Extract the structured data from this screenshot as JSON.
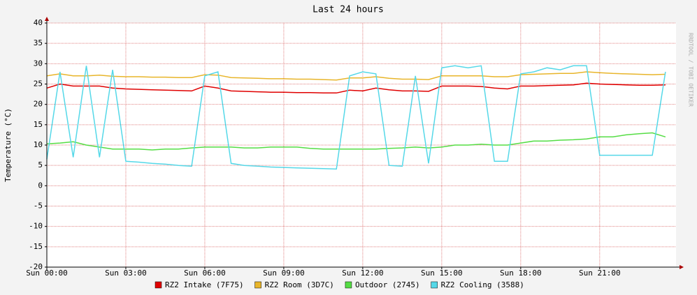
{
  "chart_data": {
    "type": "line",
    "title": "Last 24 hours",
    "y_label": "Temperature (°C)",
    "watermark": "RRDTOOL / TOBI OETIKER",
    "x": [
      0,
      0.5,
      1,
      1.5,
      2,
      2.5,
      3,
      3.5,
      4,
      4.5,
      5,
      5.5,
      6,
      6.5,
      7,
      7.5,
      8,
      8.5,
      9,
      9.5,
      10,
      10.5,
      11,
      11.5,
      12,
      12.5,
      13,
      13.5,
      14,
      14.5,
      15,
      15.5,
      16,
      16.5,
      17,
      17.5,
      18,
      18.5,
      19,
      19.5,
      20,
      20.5,
      21,
      21.5,
      22,
      22.5,
      23,
      23.5
    ],
    "xlim": [
      0,
      23.9
    ],
    "xticks": [
      {
        "value": 0,
        "label": "Sun 00:00"
      },
      {
        "value": 3,
        "label": "Sun 03:00"
      },
      {
        "value": 6,
        "label": "Sun 06:00"
      },
      {
        "value": 9,
        "label": "Sun 09:00"
      },
      {
        "value": 12,
        "label": "Sun 12:00"
      },
      {
        "value": 15,
        "label": "Sun 15:00"
      },
      {
        "value": 18,
        "label": "Sun 18:00"
      },
      {
        "value": 21,
        "label": "Sun 21:00"
      }
    ],
    "ylim": [
      -20,
      40
    ],
    "yticks": [
      -20,
      -15,
      -10,
      -5,
      0,
      5,
      10,
      15,
      20,
      25,
      30,
      35,
      40
    ],
    "grid": true,
    "series": [
      {
        "name": "RZ2 Intake (7F75)",
        "color": "#e00000",
        "values": [
          24,
          25,
          24.5,
          24.5,
          24.5,
          24,
          23.8,
          23.7,
          23.6,
          23.5,
          23.4,
          23.3,
          24.5,
          24,
          23.3,
          23.2,
          23.1,
          23,
          23,
          22.9,
          22.9,
          22.8,
          22.8,
          23.5,
          23.3,
          24,
          23.6,
          23.3,
          23.3,
          23.2,
          24.5,
          24.5,
          24.5,
          24.4,
          24,
          23.8,
          24.5,
          24.5,
          24.6,
          24.7,
          24.8,
          25.2,
          25,
          24.9,
          24.8,
          24.7,
          24.7,
          24.8
        ]
      },
      {
        "name": "RZ2 Room (3D7C)",
        "color": "#e8b52a",
        "values": [
          27,
          27.5,
          27,
          27,
          27.2,
          26.9,
          26.8,
          26.8,
          26.7,
          26.7,
          26.6,
          26.6,
          27.3,
          27.2,
          26.6,
          26.5,
          26.4,
          26.3,
          26.3,
          26.2,
          26.2,
          26.1,
          26,
          26.5,
          26.5,
          26.8,
          26.4,
          26.2,
          26.2,
          26.1,
          27,
          27,
          27,
          27,
          26.8,
          26.8,
          27.3,
          27.4,
          27.5,
          27.6,
          27.6,
          28,
          27.8,
          27.6,
          27.5,
          27.4,
          27.3,
          27.4
        ]
      },
      {
        "name": "Outdoor (2745)",
        "color": "#55dd44",
        "values": [
          10.3,
          10.5,
          10.8,
          10,
          9.5,
          9,
          9,
          9,
          8.8,
          9,
          9,
          9.3,
          9.5,
          9.5,
          9.5,
          9.3,
          9.3,
          9.5,
          9.5,
          9.5,
          9.2,
          9,
          9,
          9,
          9,
          9,
          9.2,
          9.3,
          9.5,
          9.3,
          9.5,
          10,
          10,
          10.2,
          10,
          10,
          10.5,
          11,
          11,
          11.2,
          11.3,
          11.5,
          12,
          12,
          12.5,
          12.8,
          13,
          12
        ]
      },
      {
        "name": "RZ2 Cooling (3588)",
        "color": "#55d8e8",
        "values": [
          6.5,
          28,
          7,
          29.5,
          7,
          28.5,
          6,
          5.8,
          5.5,
          5.3,
          5,
          4.8,
          27,
          28,
          5.5,
          5,
          4.8,
          4.6,
          4.5,
          4.4,
          4.3,
          4.2,
          4.1,
          27,
          28,
          27.5,
          5,
          4.8,
          27,
          5.5,
          29,
          29.5,
          29,
          29.5,
          6,
          6,
          27.5,
          28,
          29,
          28.5,
          29.5,
          29.5,
          7.5,
          7.5,
          7.5,
          7.5,
          7.5,
          28
        ]
      }
    ]
  }
}
